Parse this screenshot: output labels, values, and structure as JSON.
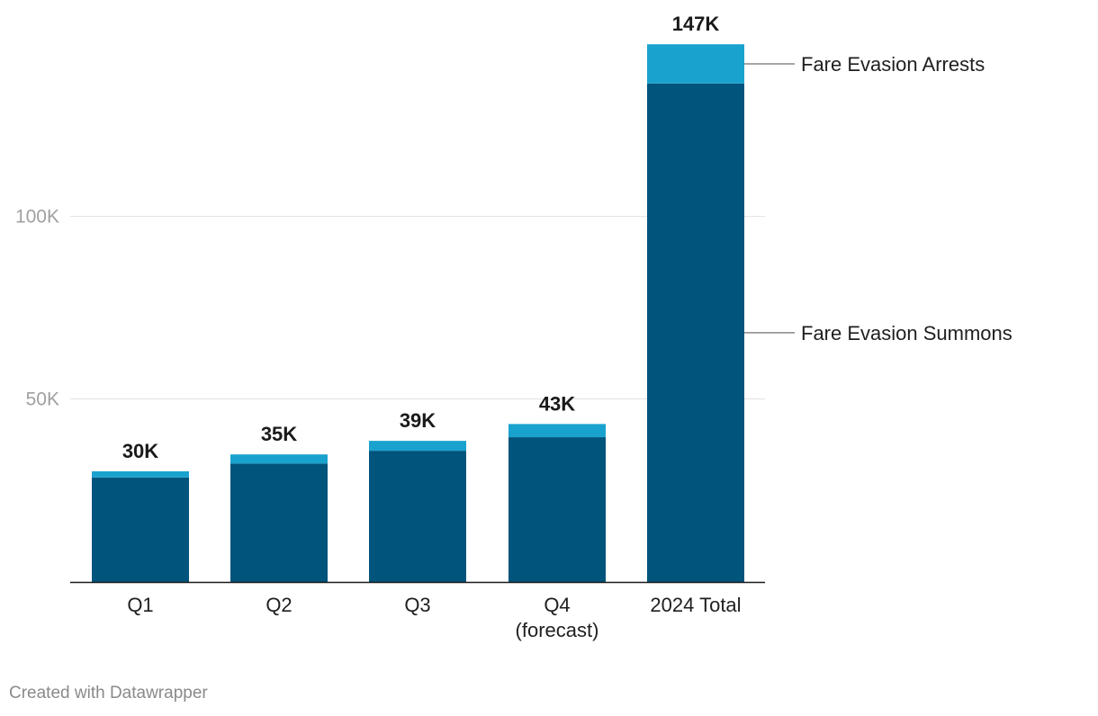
{
  "chart_data": {
    "type": "bar",
    "stacked": true,
    "categories": [
      "Q1",
      "Q2",
      "Q3",
      "Q4\n(forecast)",
      "2024 Total"
    ],
    "series": [
      {
        "name": "Fare Evasion Summons",
        "color": "#01547c",
        "values": [
          28500,
          32300,
          35800,
          39500,
          136000
        ]
      },
      {
        "name": "Fare Evasion Arrests",
        "color": "#1aa2ce",
        "values": [
          1700,
          2500,
          2700,
          3600,
          10700
        ]
      }
    ],
    "total_labels": [
      "30K",
      "35K",
      "39K",
      "43K",
      "147K"
    ],
    "yticks": [
      {
        "value": 50000,
        "label": "50K"
      },
      {
        "value": 100000,
        "label": "100K"
      }
    ],
    "ylim": [
      0,
      147000
    ],
    "grid": true,
    "legend": "direct labels right of last bar"
  },
  "footer": {
    "credit": "Created with Datawrapper"
  }
}
